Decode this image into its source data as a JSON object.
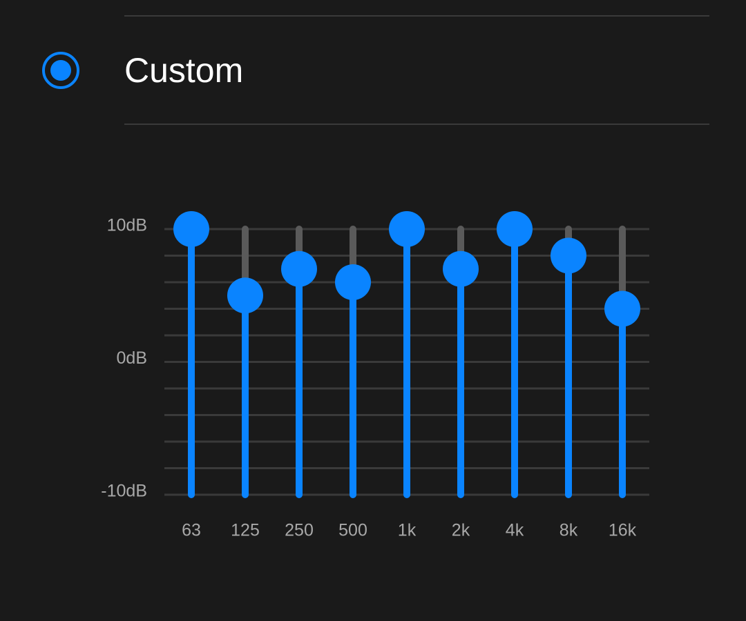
{
  "header": {
    "title": "Custom"
  },
  "chart_data": {
    "type": "bar",
    "categories": [
      "63",
      "125",
      "250",
      "500",
      "1k",
      "2k",
      "4k",
      "8k",
      "16k"
    ],
    "values": [
      10,
      5,
      7,
      6,
      10,
      7,
      10,
      8,
      4
    ],
    "color": "#0a84ff",
    "track_color": "#5a5a5a",
    "ylim": [
      -10,
      10
    ],
    "yticks": [
      {
        "value": 10,
        "label": "10dB"
      },
      {
        "value": 0,
        "label": "0dB"
      },
      {
        "value": -10,
        "label": "-10dB"
      }
    ],
    "minor_yticks": [
      8,
      6,
      4,
      2,
      -2,
      -4,
      -6,
      -8
    ],
    "grid": true
  }
}
